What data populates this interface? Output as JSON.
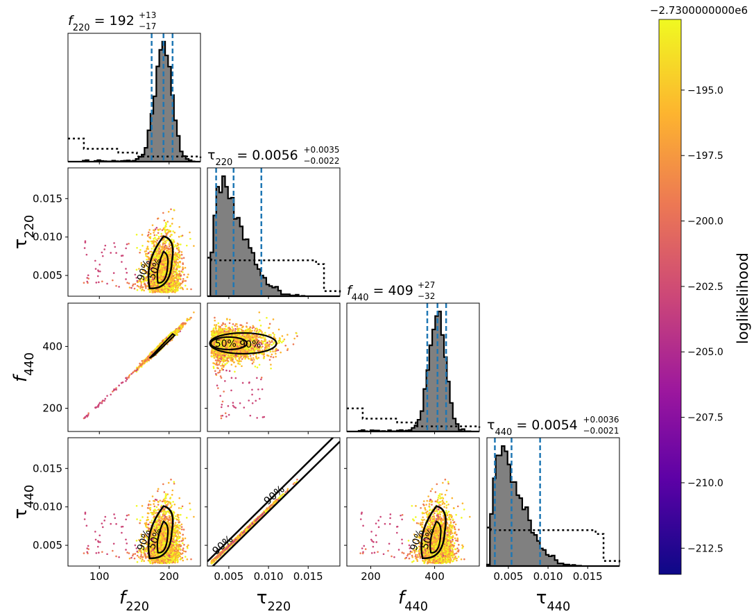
{
  "figure": {
    "colorbar_offset": "−2.7300000000e6",
    "colorbar_label": "loglikelihood"
  },
  "colors": {
    "hist_fill": "#808080",
    "hist_edge": "#000000",
    "quantile_line": "#1f77b4",
    "colormap": [
      "#0d0887",
      "#5c01a6",
      "#9c179e",
      "#cc4778",
      "#ed7953",
      "#fdb42f",
      "#f0f921"
    ]
  },
  "chart_data": [
    {
      "type": "corner",
      "parameters": [
        {
          "key": "f220",
          "symbol": "f",
          "sub": "220",
          "range": [
            55,
            245
          ],
          "ticks": [
            100,
            200
          ],
          "tick_labels": [
            "100",
            "200"
          ],
          "title_value": "192",
          "title_plus": "+13",
          "title_minus": "−17",
          "median": 192,
          "lo": 175,
          "hi": 205
        },
        {
          "key": "tau220",
          "symbol": "τ",
          "sub": "220",
          "range": [
            0.0023,
            0.019
          ],
          "ticks": [
            0.005,
            0.01,
            0.015
          ],
          "tick_labels": [
            "0.005",
            "0.010",
            "0.015"
          ],
          "title_value": "0.0056",
          "title_plus": "+0.0035",
          "title_minus": "−0.0022",
          "median": 0.0056,
          "lo": 0.0034,
          "hi": 0.0091
        },
        {
          "key": "f440",
          "symbol": "f",
          "sub": "440",
          "range": [
            125,
            540
          ],
          "ticks": [
            200,
            400
          ],
          "tick_labels": [
            "200",
            "400"
          ],
          "title_value": "409",
          "title_plus": "+27",
          "title_minus": "−32",
          "median": 409,
          "lo": 377,
          "hi": 436
        },
        {
          "key": "tau440",
          "symbol": "τ",
          "sub": "440",
          "range": [
            0.0023,
            0.019
          ],
          "ticks": [
            0.005,
            0.01,
            0.015
          ],
          "tick_labels": [
            "0.005",
            "0.010",
            "0.015"
          ],
          "title_value": "0.0054",
          "title_plus": "+0.0036",
          "title_minus": "−0.0021",
          "median": 0.0054,
          "lo": 0.0033,
          "hi": 0.009
        }
      ],
      "contour_labels": [
        "50%",
        "90%"
      ],
      "colorbar": {
        "range": [
          -213.5,
          -192.3
        ],
        "ticks": [
          -195.0,
          -197.5,
          -200.0,
          -202.5,
          -205.0,
          -207.5,
          -210.0,
          -212.5
        ],
        "tick_labels": [
          "−195.0",
          "−197.5",
          "−200.0",
          "−202.5",
          "−205.0",
          "−207.5",
          "−210.0",
          "−212.5"
        ]
      },
      "grid": false
    }
  ]
}
